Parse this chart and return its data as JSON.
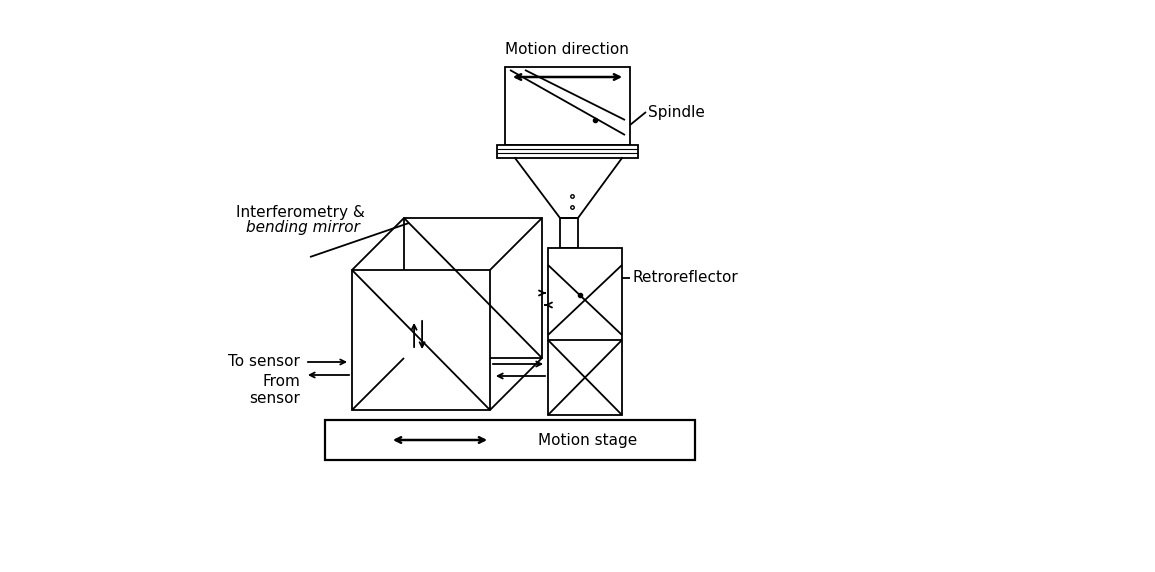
{
  "bg_color": "#ffffff",
  "line_color": "#000000",
  "text_color": "#000000",
  "figsize": [
    11.55,
    5.72
  ],
  "dpi": 100,
  "labels": {
    "motion_direction": "Motion direction",
    "spindle": "Spindle",
    "interferometry1": "Interferometry &",
    "interferometry2": "bending mirror",
    "retroreflector": "Retroreflector",
    "to_sensor": "To sensor",
    "from_sensor": "From\nsensor",
    "motion_stage": "Motion stage"
  }
}
